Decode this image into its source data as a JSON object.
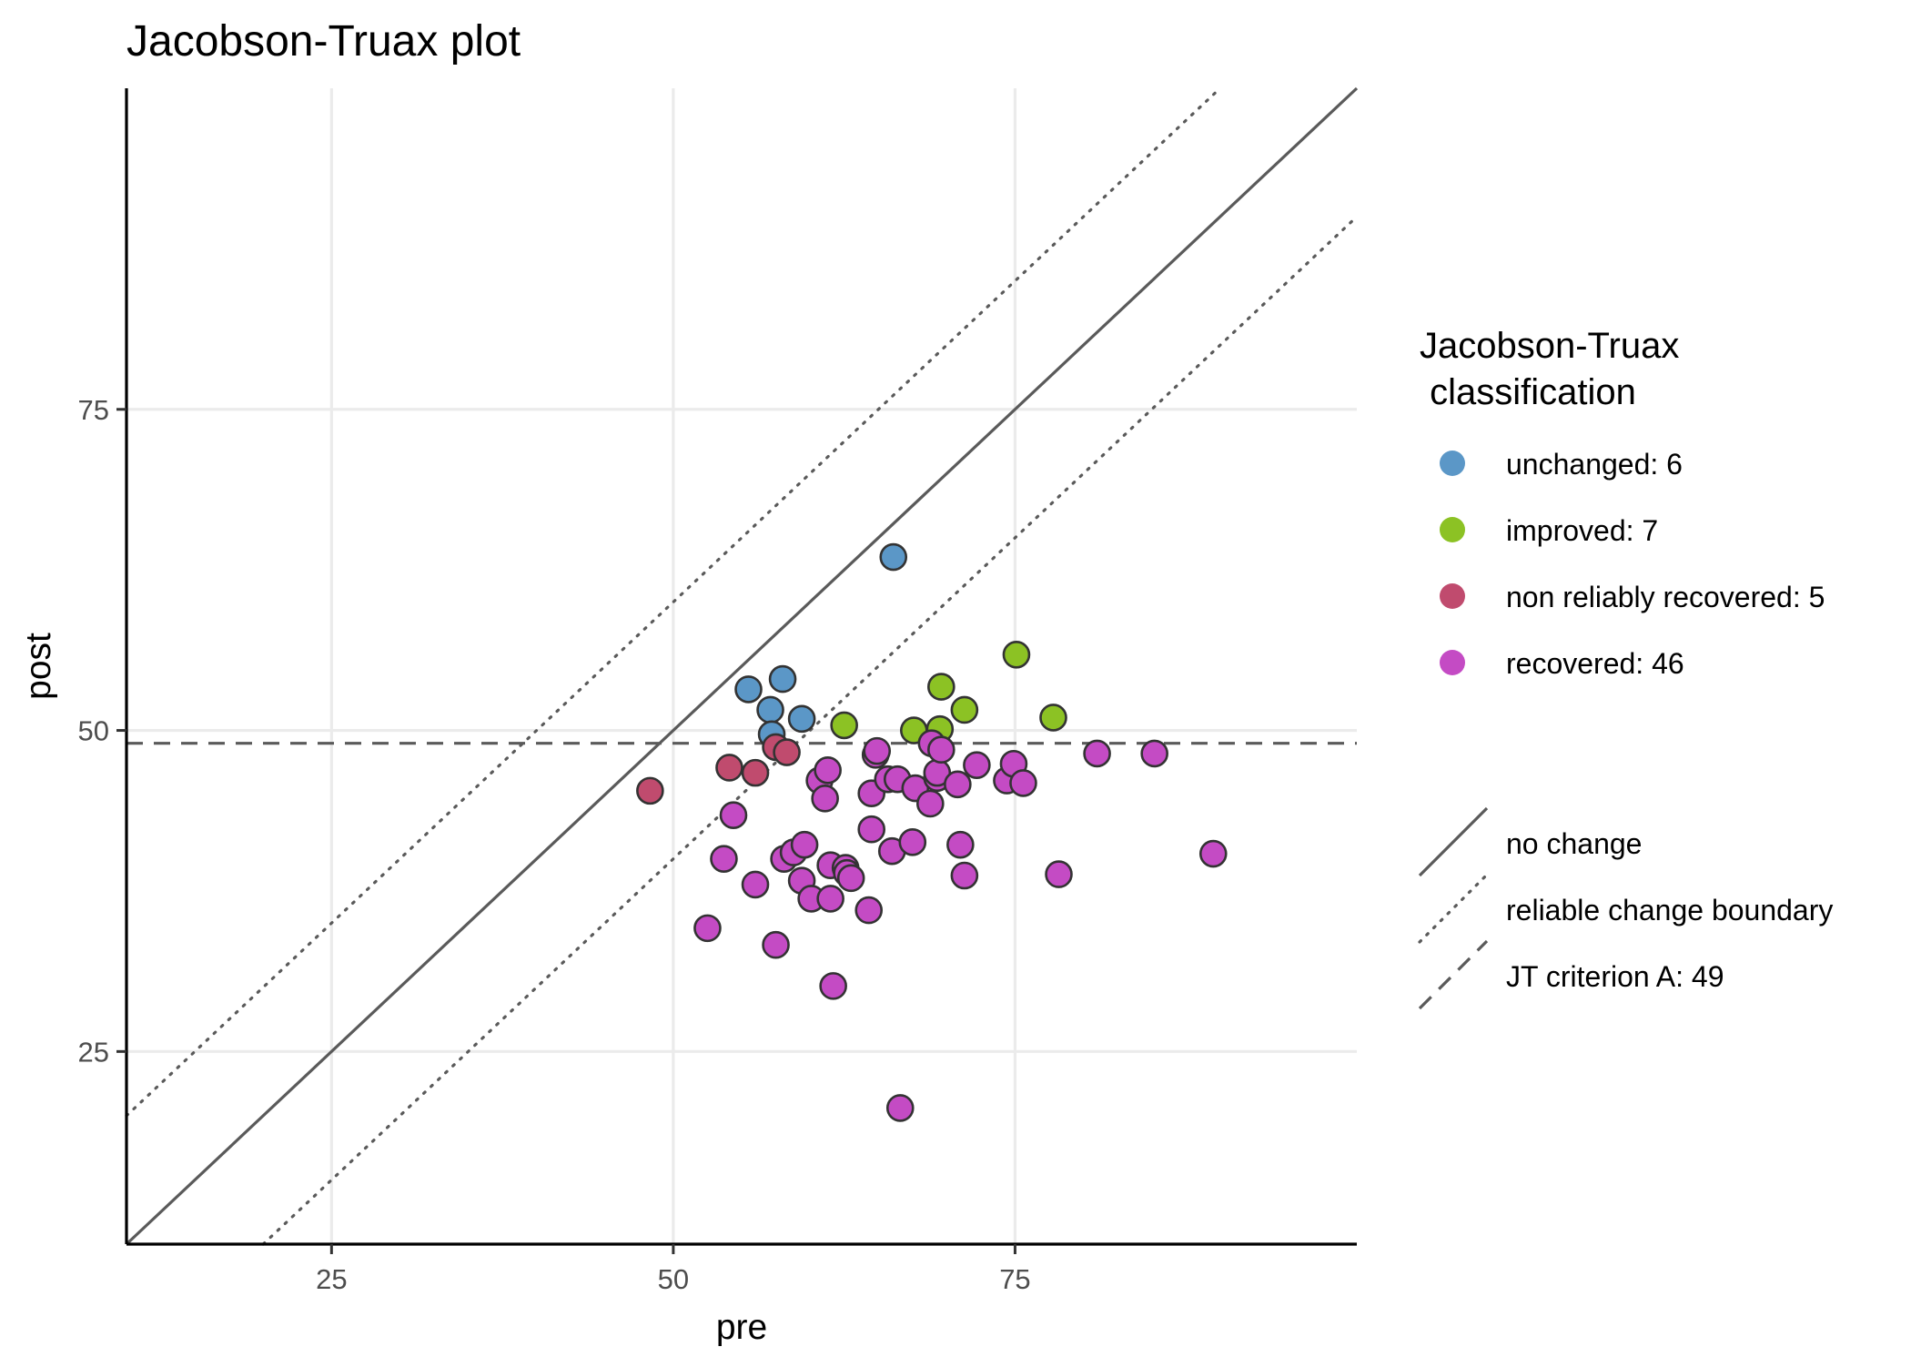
{
  "chart_data": {
    "type": "scatter",
    "title": "Jacobson-Truax plot",
    "xlabel": "pre",
    "ylabel": "post",
    "xlim": [
      10,
      100
    ],
    "ylim": [
      10,
      100
    ],
    "x_ticks": [
      25,
      50,
      75
    ],
    "y_ticks": [
      25,
      50,
      75
    ],
    "grid": true,
    "reference_lines": {
      "no_change": {
        "label": "no change",
        "intercept": 0,
        "slope": 1
      },
      "reliable_change_offset": 10,
      "reliable_change_label": "reliable change boundary",
      "jt_criterion": {
        "label": "JT criterion A: 49",
        "value": 49
      }
    },
    "legend": {
      "title_line1": "Jacobson-Truax",
      "title_line2": " classification",
      "position": "right"
    },
    "colors": {
      "unchanged": "#5b97c7",
      "improved": "#8cc224",
      "non_reliably_recovered": "#c04b6e",
      "recovered": "#c44bc4",
      "point_outline": "#333333",
      "reference_line": "#5a5a5a",
      "grid": "#ebebeb"
    },
    "series": [
      {
        "key": "unchanged",
        "name": "unchanged: 6",
        "points": [
          [
            55.5,
            53.2
          ],
          [
            57.1,
            51.6
          ],
          [
            58.0,
            54.0
          ],
          [
            57.2,
            49.7
          ],
          [
            59.4,
            50.9
          ],
          [
            66.1,
            63.5
          ]
        ]
      },
      {
        "key": "improved",
        "name": "improved: 7",
        "points": [
          [
            62.5,
            50.4
          ],
          [
            67.6,
            50.0
          ],
          [
            69.6,
            53.4
          ],
          [
            69.5,
            50.1
          ],
          [
            71.3,
            51.6
          ],
          [
            75.1,
            55.9
          ],
          [
            77.8,
            51.0
          ]
        ]
      },
      {
        "key": "non_reliably_recovered",
        "name": "non reliably recovered: 5",
        "points": [
          [
            48.3,
            45.3
          ],
          [
            54.1,
            47.1
          ],
          [
            56.0,
            46.7
          ],
          [
            57.5,
            48.7
          ],
          [
            58.3,
            48.3
          ]
        ]
      },
      {
        "key": "recovered",
        "name": "recovered: 46",
        "points": [
          [
            52.5,
            34.6
          ],
          [
            53.7,
            40.0
          ],
          [
            54.4,
            43.4
          ],
          [
            56.0,
            38.0
          ],
          [
            57.5,
            33.3
          ],
          [
            58.1,
            40.0
          ],
          [
            58.8,
            40.5
          ],
          [
            59.4,
            38.3
          ],
          [
            59.6,
            41.1
          ],
          [
            60.1,
            36.9
          ],
          [
            60.7,
            46.1
          ],
          [
            61.1,
            44.7
          ],
          [
            61.3,
            46.9
          ],
          [
            61.5,
            39.5
          ],
          [
            61.5,
            36.9
          ],
          [
            61.7,
            30.1
          ],
          [
            62.6,
            39.3
          ],
          [
            62.7,
            38.9
          ],
          [
            63.0,
            38.5
          ],
          [
            64.3,
            36.0
          ],
          [
            64.5,
            45.1
          ],
          [
            64.5,
            42.3
          ],
          [
            64.8,
            48.1
          ],
          [
            64.9,
            48.4
          ],
          [
            65.7,
            46.2
          ],
          [
            66.0,
            40.6
          ],
          [
            66.4,
            46.2
          ],
          [
            66.6,
            20.6
          ],
          [
            67.5,
            41.3
          ],
          [
            67.7,
            45.5
          ],
          [
            68.8,
            44.3
          ],
          [
            68.9,
            49.0
          ],
          [
            69.3,
            46.3
          ],
          [
            69.3,
            46.7
          ],
          [
            69.6,
            48.5
          ],
          [
            70.8,
            45.8
          ],
          [
            71.0,
            41.1
          ],
          [
            71.3,
            38.7
          ],
          [
            72.2,
            47.3
          ],
          [
            74.4,
            46.1
          ],
          [
            74.9,
            47.4
          ],
          [
            75.6,
            45.9
          ],
          [
            78.2,
            38.8
          ],
          [
            81.0,
            48.2
          ],
          [
            85.2,
            48.2
          ],
          [
            89.5,
            40.4
          ]
        ]
      }
    ]
  }
}
